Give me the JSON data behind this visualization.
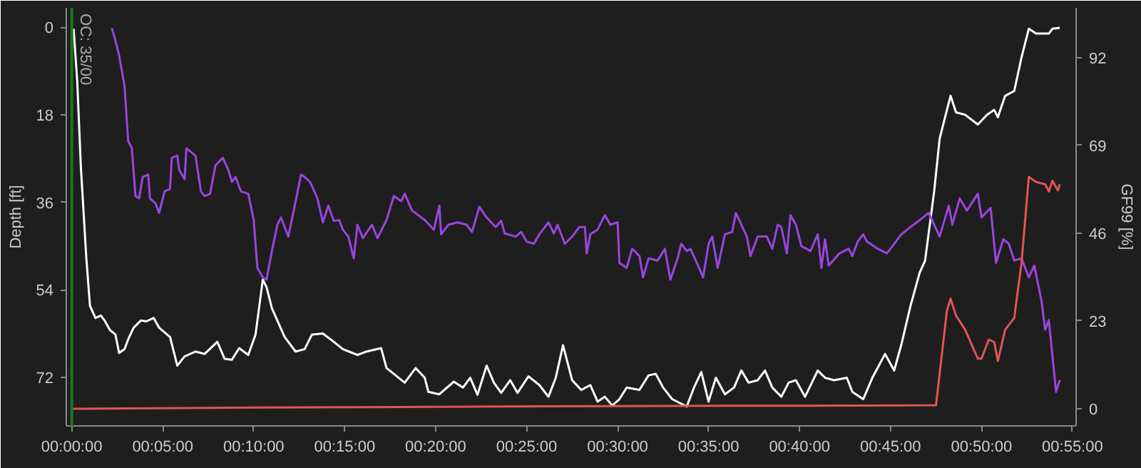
{
  "chart_data": {
    "type": "line",
    "ylabel": "Depth [ft]",
    "y2label": "GF99 [%]",
    "xlim": [
      -0.3,
      55.2
    ],
    "ylim": [
      82,
      -4
    ],
    "y2lim": [
      -4.5,
      105
    ],
    "xticks": [
      {
        "value": 0,
        "label": "00:00:00"
      },
      {
        "value": 5,
        "label": "00:05:00"
      },
      {
        "value": 10,
        "label": "00:10:00"
      },
      {
        "value": 15,
        "label": "00:15:00"
      },
      {
        "value": 20,
        "label": "00:20:00"
      },
      {
        "value": 25,
        "label": "00:25:00"
      },
      {
        "value": 30,
        "label": "00:30:00"
      },
      {
        "value": 35,
        "label": "00:35:00"
      },
      {
        "value": 40,
        "label": "00:40:00"
      },
      {
        "value": 45,
        "label": "00:45:00"
      },
      {
        "value": 50,
        "label": "00:50:00"
      },
      {
        "value": 55,
        "label": "00:55:00"
      }
    ],
    "yticks": [
      0,
      18,
      36,
      54,
      72
    ],
    "y2ticks": [
      0,
      23,
      46,
      69,
      92
    ],
    "grid": false,
    "marker": "none",
    "line_style": "solid",
    "ref_lines": [
      {
        "axis": "x",
        "value": 0,
        "label": "OC: 35/00",
        "color": "#1a7a1a"
      }
    ],
    "series": [
      {
        "color": "#ffffff",
        "x": [
          0.1,
          0.3,
          0.5,
          0.8,
          1.0,
          1.3,
          1.6,
          1.8,
          2.1,
          2.4,
          2.6,
          2.9,
          3.1,
          3.4,
          3.8,
          4.1,
          4.5,
          4.8,
          5.4,
          5.8,
          6.2,
          6.8,
          7.3,
          8.0,
          8.4,
          8.8,
          9.2,
          9.7,
          10.1,
          10.5,
          10.7,
          11.0,
          11.7,
          12.3,
          12.8,
          13.2,
          13.8,
          14.4,
          14.9,
          15.7,
          16.2,
          17.0,
          17.3,
          17.8,
          18.3,
          18.9,
          19.4,
          19.6,
          20.2,
          21.0,
          21.5,
          21.9,
          22.3,
          22.8,
          23.2,
          23.6,
          24.1,
          24.5,
          25.1,
          25.7,
          26.2,
          26.6,
          27.0,
          27.5,
          28.0,
          28.5,
          28.9,
          29.3,
          29.7,
          30.1,
          30.5,
          31.2,
          31.7,
          32.1,
          32.5,
          33.0,
          33.8,
          34.2,
          34.6,
          35.0,
          35.4,
          35.9,
          36.4,
          36.8,
          37.2,
          37.7,
          38.1,
          38.5,
          39.0,
          39.4,
          39.8,
          40.3,
          41.0,
          41.4,
          41.9,
          42.6,
          42.9,
          43.5,
          44.0,
          44.7,
          45.2,
          45.6,
          46.1,
          46.6,
          46.9,
          47.4,
          47.7,
          48.1,
          48.3,
          48.6,
          49.1,
          49.8,
          50.3,
          50.7,
          50.9,
          51.3,
          51.8,
          52.2,
          52.6,
          53.0,
          53.7,
          53.9,
          54.3
        ],
        "values": [
          0.3,
          11.1,
          28.8,
          47.5,
          57.3,
          59.8,
          59.3,
          60.3,
          62.3,
          63.2,
          67.0,
          66.2,
          64.2,
          61.8,
          60.3,
          60.5,
          59.8,
          61.8,
          63.7,
          69.6,
          67.7,
          66.7,
          67.2,
          64.7,
          68.2,
          68.4,
          66.0,
          67.4,
          63.2,
          51.9,
          53.4,
          57.8,
          63.7,
          66.7,
          66.2,
          63.2,
          63.0,
          64.7,
          66.2,
          67.4,
          66.7,
          66.0,
          70.1,
          71.6,
          73.1,
          70.1,
          72.1,
          75.0,
          75.5,
          72.9,
          74.1,
          72.1,
          75.6,
          69.6,
          73.1,
          75.2,
          72.6,
          75.2,
          71.8,
          73.6,
          76.0,
          72.1,
          65.4,
          72.6,
          74.6,
          73.6,
          77.0,
          76.0,
          77.8,
          76.5,
          74.1,
          74.6,
          71.6,
          71.3,
          74.1,
          76.5,
          78.0,
          74.1,
          70.9,
          77.0,
          72.1,
          75.5,
          74.1,
          70.6,
          73.1,
          72.6,
          70.6,
          74.1,
          76.0,
          73.1,
          72.6,
          76.0,
          70.6,
          72.1,
          72.6,
          72.1,
          75.0,
          76.5,
          72.1,
          67.2,
          70.6,
          65.2,
          57.3,
          50.5,
          48.0,
          33.7,
          22.9,
          17.0,
          14.1,
          17.5,
          18.0,
          20.0,
          18.0,
          17.0,
          18.5,
          14.1,
          13.1,
          6.2,
          0.3,
          1.3,
          1.3,
          0.3,
          0.1
        ]
      },
      {
        "color": "#9b44e0",
        "axis": "y2",
        "x": [
          2.2,
          2.4,
          2.6,
          2.9,
          3.1,
          3.3,
          3.5,
          3.7,
          3.9,
          4.2,
          4.3,
          4.6,
          4.8,
          5.1,
          5.4,
          5.5,
          5.8,
          5.9,
          6.2,
          6.3,
          6.8,
          7.1,
          7.3,
          7.6,
          7.9,
          8.3,
          8.6,
          8.8,
          9.0,
          9.3,
          9.7,
          10.0,
          10.2,
          10.5,
          10.7,
          11.0,
          11.3,
          11.5,
          11.9,
          12.2,
          12.6,
          12.8,
          13.1,
          13.5,
          13.8,
          14.1,
          14.4,
          14.7,
          14.9,
          15.2,
          15.5,
          15.7,
          16.0,
          16.5,
          16.8,
          17.3,
          17.7,
          18.1,
          18.3,
          18.7,
          19.4,
          19.9,
          20.2,
          20.3,
          20.7,
          21.2,
          21.7,
          22.0,
          22.4,
          22.8,
          23.3,
          23.6,
          23.8,
          24.4,
          24.7,
          25.0,
          25.4,
          25.7,
          26.2,
          26.5,
          26.7,
          27.1,
          27.5,
          27.9,
          28.2,
          28.3,
          28.5,
          28.9,
          29.3,
          29.6,
          30.0,
          30.1,
          30.5,
          30.8,
          31.2,
          31.4,
          31.7,
          32.2,
          32.6,
          32.9,
          33.3,
          33.5,
          33.8,
          34.0,
          34.3,
          34.7,
          35.0,
          35.2,
          35.5,
          35.9,
          36.3,
          36.5,
          36.8,
          37.1,
          37.3,
          37.7,
          38.2,
          38.5,
          38.8,
          39.0,
          39.3,
          39.5,
          39.8,
          40.1,
          40.6,
          41.0,
          41.2,
          41.4,
          41.6,
          42.2,
          42.7,
          42.9,
          43.2,
          43.5,
          43.7,
          44.3,
          44.8,
          45.6,
          46.1,
          46.6,
          47.1,
          47.7,
          48.2,
          48.4,
          48.8,
          49.2,
          49.8,
          50.0,
          50.5,
          50.8,
          51.2,
          51.5,
          51.8,
          52.2,
          52.6,
          52.9,
          53.3,
          53.5,
          53.7,
          54.1,
          54.3
        ],
        "values": [
          99.7,
          96.4,
          92.6,
          84.5,
          70.1,
          68.3,
          55.7,
          55.1,
          60.7,
          61.3,
          55.1,
          53.8,
          51.3,
          56.9,
          57.6,
          65.7,
          66.3,
          62.6,
          60.1,
          68.2,
          66.3,
          56.9,
          55.7,
          56.3,
          63.8,
          65.7,
          62.6,
          59.4,
          60.7,
          56.9,
          56.3,
          49.4,
          36.9,
          34.4,
          33.8,
          41.3,
          48.2,
          50.1,
          45.1,
          51.9,
          61.3,
          60.7,
          59.4,
          55.1,
          48.8,
          53.2,
          49.2,
          49.4,
          46.9,
          45.1,
          39.4,
          48.2,
          44.7,
          48.2,
          44.7,
          49.4,
          55.7,
          54.4,
          56.3,
          51.9,
          49.4,
          46.9,
          53.2,
          45.7,
          48.2,
          48.8,
          48.2,
          46.3,
          52.9,
          50.1,
          47.6,
          49.2,
          45.9,
          45.1,
          46.3,
          43.8,
          43.2,
          45.7,
          48.8,
          45.9,
          48.2,
          43.2,
          45.1,
          47.6,
          47.6,
          40.7,
          45.7,
          46.9,
          50.7,
          48.2,
          48.8,
          38.2,
          36.9,
          41.9,
          40.0,
          34.4,
          39.4,
          38.8,
          41.9,
          33.8,
          39.4,
          43.2,
          41.3,
          41.9,
          38.8,
          34.4,
          43.2,
          45.1,
          36.9,
          45.7,
          46.3,
          51.3,
          48.2,
          45.1,
          40.0,
          45.1,
          45.1,
          41.9,
          48.2,
          47.6,
          40.7,
          50.7,
          48.2,
          42.6,
          41.3,
          45.7,
          36.9,
          44.4,
          37.5,
          40.7,
          41.9,
          40.0,
          43.8,
          45.7,
          43.8,
          41.9,
          40.7,
          45.7,
          47.6,
          49.4,
          51.3,
          45.1,
          53.2,
          48.2,
          55.1,
          51.9,
          56.3,
          50.1,
          52.6,
          38.2,
          44.4,
          43.2,
          38.8,
          39.4,
          34.4,
          37.5,
          28.2,
          20.7,
          23.2,
          4.4,
          7.5
        ]
      },
      {
        "color": "#e05555",
        "axis": "y2",
        "x": [
          0,
          10,
          20,
          30,
          40,
          47.5,
          48.1,
          48.3,
          48.6,
          49.1,
          49.8,
          50.0,
          50.4,
          50.7,
          50.9,
          51.3,
          51.8,
          52.2,
          52.6,
          53.0,
          53.5,
          53.7,
          53.9,
          54.2,
          54.3
        ],
        "values": [
          0,
          0.3,
          0.5,
          0.7,
          0.8,
          0.9,
          25.7,
          28.8,
          24.4,
          20.7,
          13.1,
          13.1,
          18.1,
          17.5,
          12.5,
          20.7,
          23.8,
          38.2,
          60.7,
          59.4,
          58.8,
          56.9,
          59.7,
          57.2,
          58.8
        ]
      }
    ]
  }
}
